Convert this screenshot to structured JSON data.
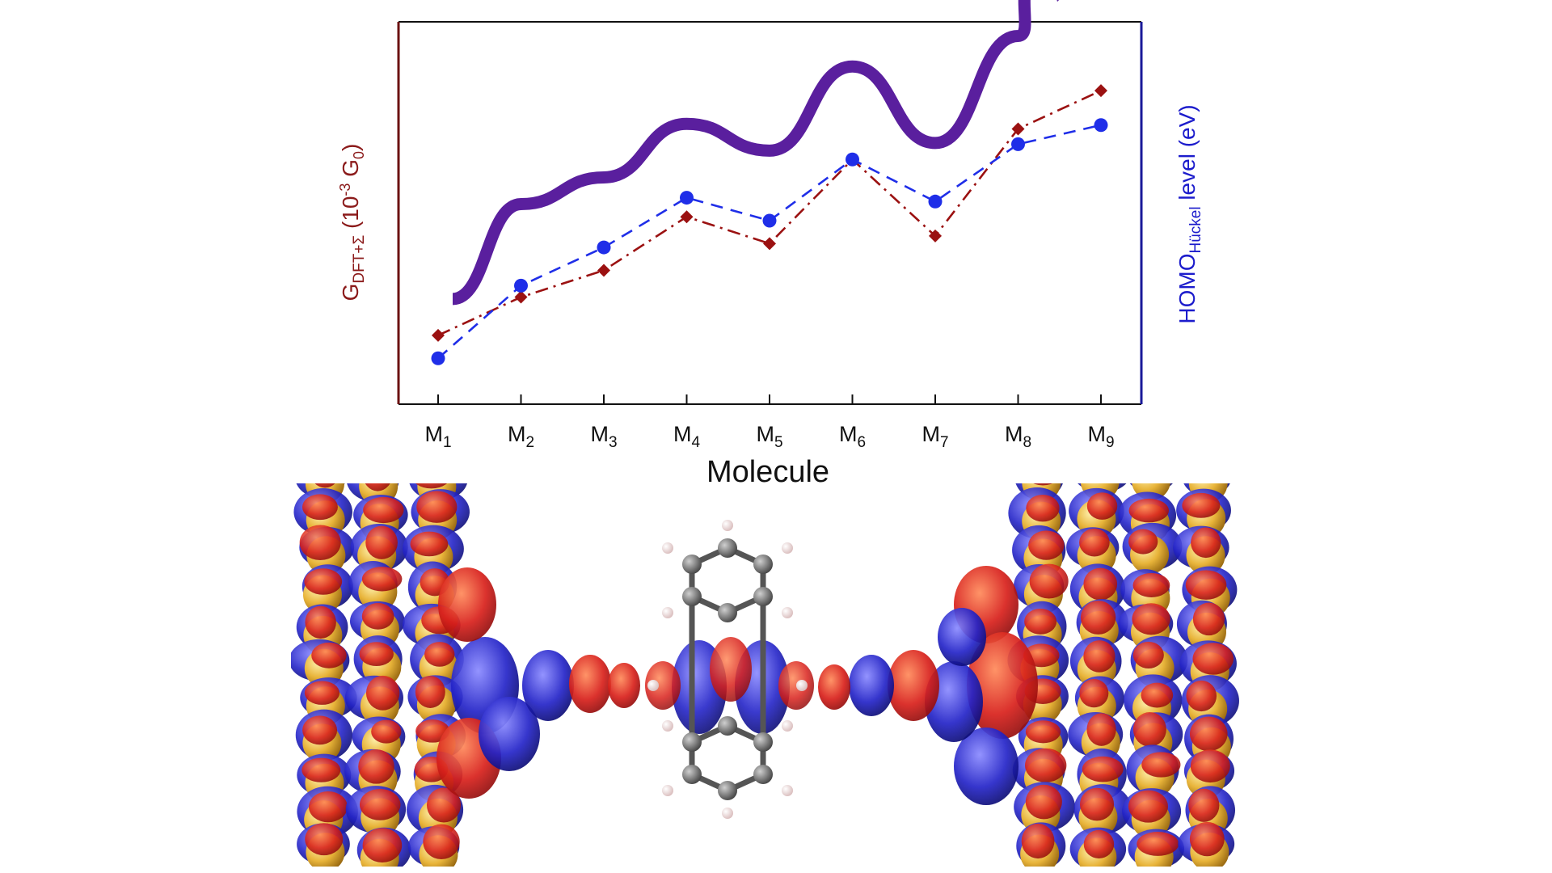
{
  "chart_data": {
    "type": "line",
    "xlabel": "Molecule",
    "ylabel_left": {
      "main": "G",
      "sub": "DFT+Σ",
      "rest": " (10",
      "sup": "-3",
      "tail": " G",
      "sub2": "0",
      "end": ")"
    },
    "ylabel_right": {
      "main": "HOMO",
      "sub": "Hückel",
      "rest": " level (eV)"
    },
    "categories": [
      {
        "base": "M",
        "sub": "1"
      },
      {
        "base": "M",
        "sub": "2"
      },
      {
        "base": "M",
        "sub": "3"
      },
      {
        "base": "M",
        "sub": "4"
      },
      {
        "base": "M",
        "sub": "5"
      },
      {
        "base": "M",
        "sub": "6"
      },
      {
        "base": "M",
        "sub": "7"
      },
      {
        "base": "M",
        "sub": "8"
      },
      {
        "base": "M",
        "sub": "9"
      }
    ],
    "ylim": [
      0,
      1
    ],
    "series": [
      {
        "axis": "left",
        "values": [
          0.18,
          0.28,
          0.35,
          0.49,
          0.42,
          0.64,
          0.44,
          0.72,
          0.82
        ],
        "color": "#9b1111",
        "marker": "diamond",
        "dash": "dash-dot"
      },
      {
        "axis": "right",
        "values": [
          0.12,
          0.31,
          0.41,
          0.54,
          0.48,
          0.64,
          0.53,
          0.68,
          0.73
        ],
        "color": "#1f2ee8",
        "marker": "circle",
        "dash": "dashed"
      }
    ],
    "trend_arrow": {
      "color": "#5a1f9e",
      "meaning": "increasing trend"
    },
    "left_axis_color": "#6b1212",
    "right_axis_color": "#1a1a99",
    "grid": false
  },
  "illustration": {
    "colors": {
      "red_lobe": "#d8201b",
      "blue_lobe": "#2424c8",
      "gold_atom": "#e8b43a",
      "carbon": "#6e6e6e",
      "hydrogen": "#f2e6e6"
    }
  }
}
